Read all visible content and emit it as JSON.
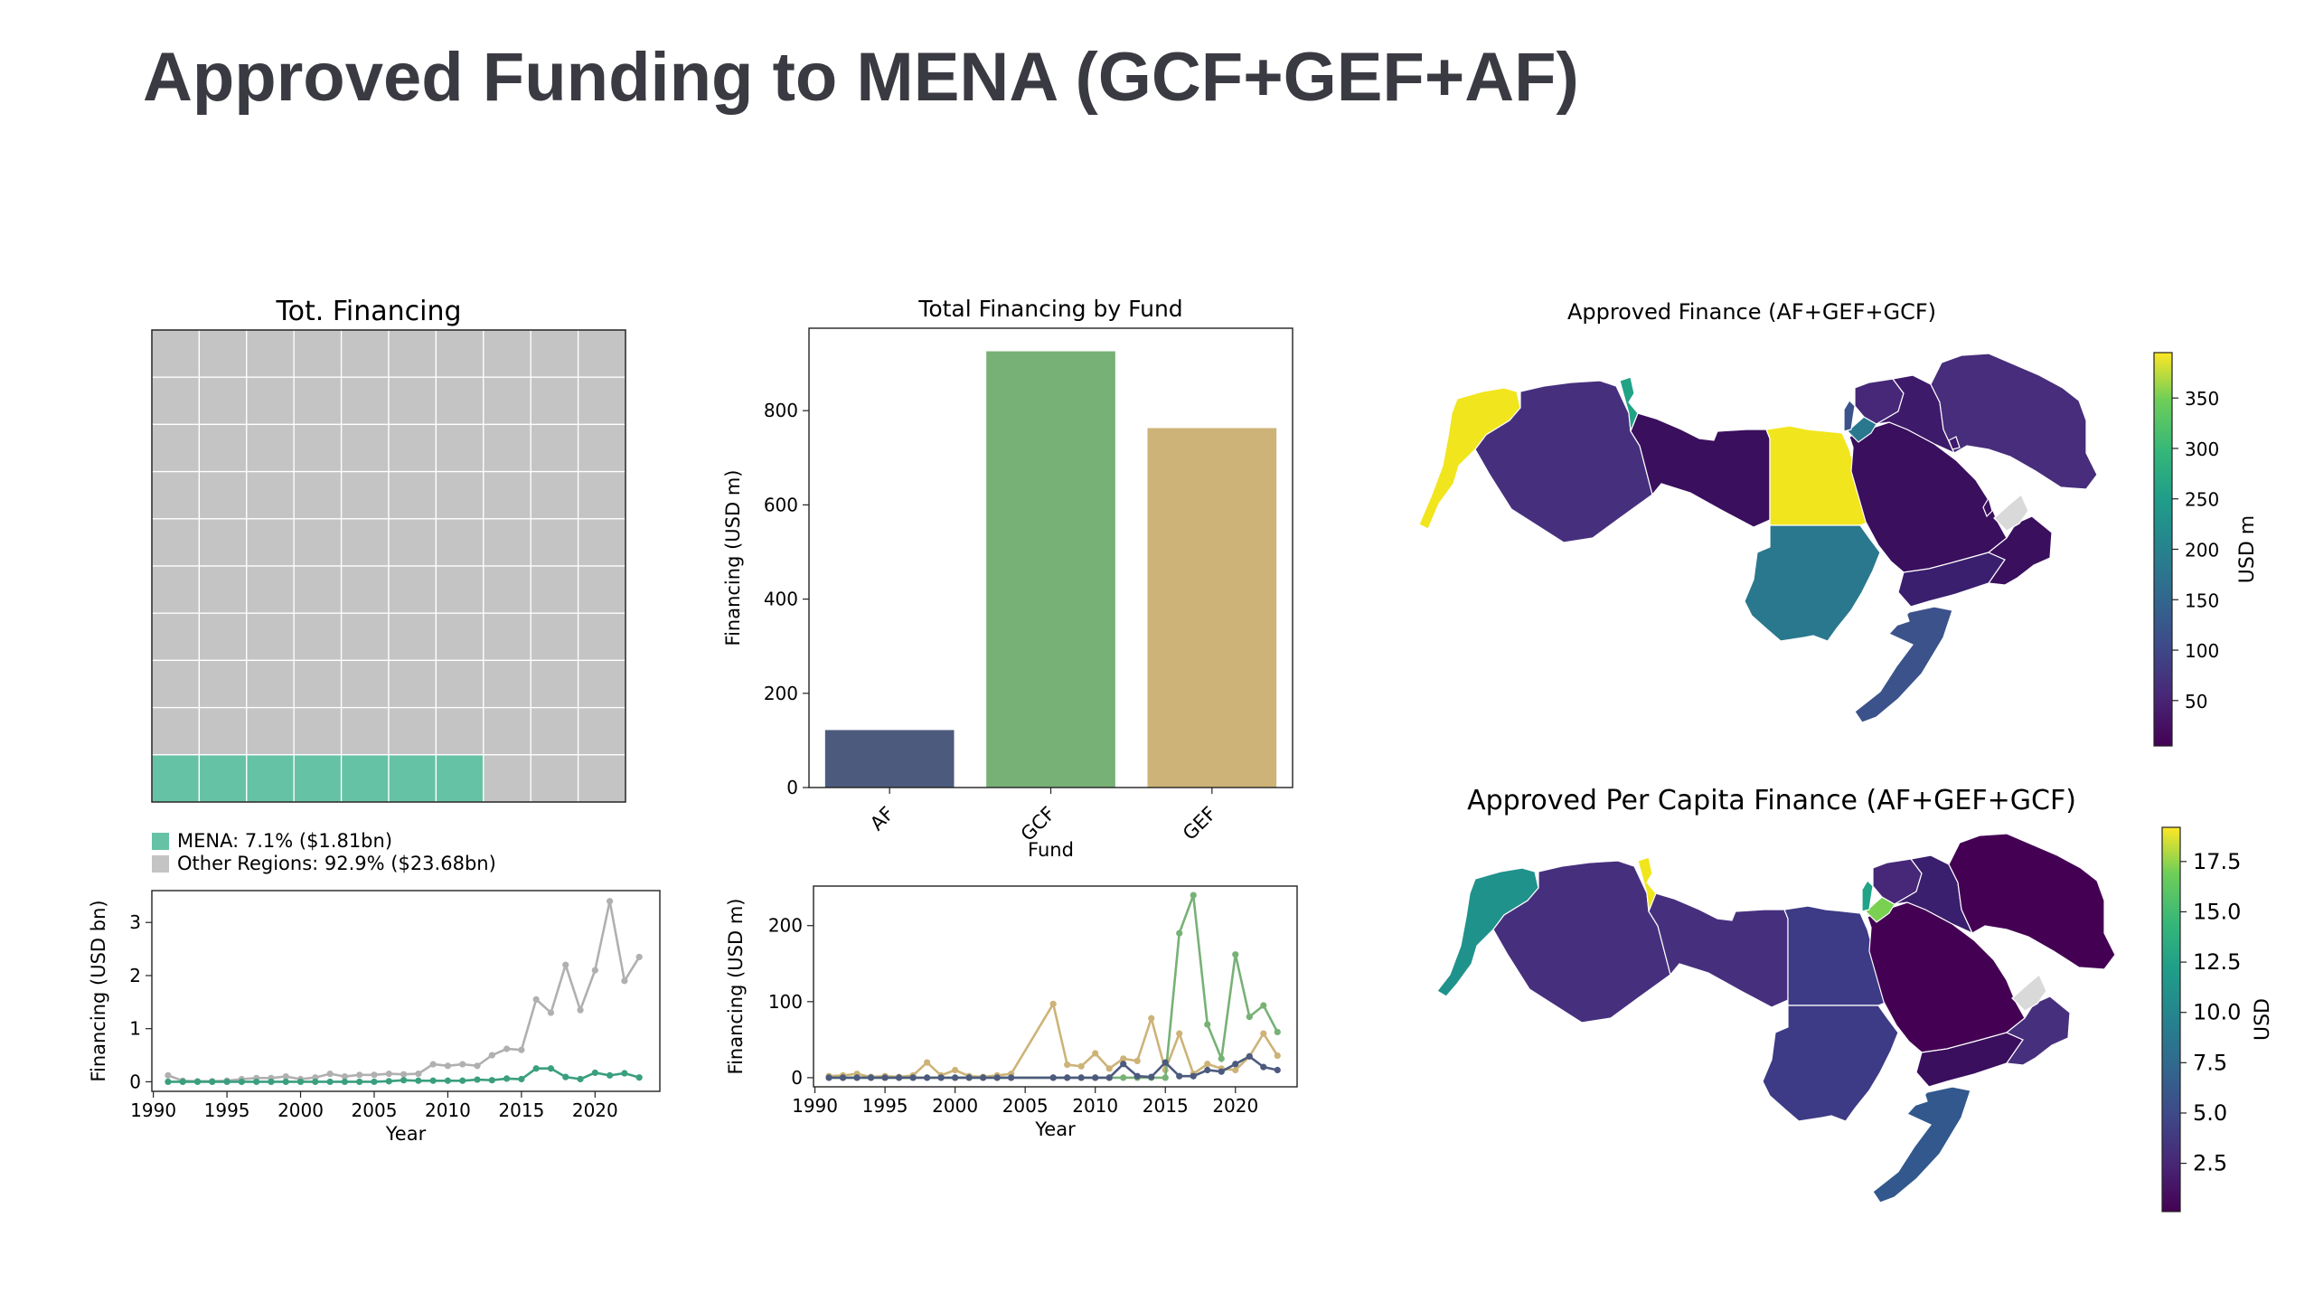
{
  "page": {
    "title": "Approved Funding to MENA (GCF+GEF+AF)"
  },
  "waffle": {
    "title": "Tot. Financing",
    "rows": 10,
    "cols": 10,
    "filled_cells": 7,
    "colors": {
      "mena": "#66c2a5",
      "other": "#c4c4c4"
    },
    "legend": [
      {
        "label": "MENA: 7.1% ($1.81bn)",
        "color": "#66c2a5"
      },
      {
        "label": "Other Regions: 92.9% ($23.68bn)",
        "color": "#c4c4c4"
      }
    ]
  },
  "chart_data": [
    {
      "id": "total_by_fund",
      "type": "bar",
      "title": "Total Financing by Fund",
      "xlabel": "Fund",
      "ylabel": "Financing (USD m)",
      "categories": [
        "AF",
        "GCF",
        "GEF"
      ],
      "values": [
        122,
        926,
        763
      ],
      "colors": [
        "#4c5a7e",
        "#77b176",
        "#cdb377"
      ],
      "ylim": [
        0,
        975
      ],
      "yticks": [
        0,
        200,
        400,
        600,
        800
      ],
      "grid": false
    },
    {
      "id": "region_timeseries",
      "type": "line",
      "xlabel": "Year",
      "ylabel": "Financing (USD bn)",
      "xlim": [
        1989.9,
        2024.4
      ],
      "ylim": [
        -0.18,
        3.6
      ],
      "xticks": [
        1990,
        1995,
        2000,
        2005,
        2010,
        2015,
        2020
      ],
      "yticks": [
        0,
        1,
        2,
        3
      ],
      "x": [
        1991,
        1992,
        1993,
        1994,
        1995,
        1996,
        1997,
        1998,
        1999,
        2000,
        2001,
        2002,
        2003,
        2004,
        2005,
        2006,
        2007,
        2008,
        2009,
        2010,
        2011,
        2012,
        2013,
        2014,
        2015,
        2016,
        2017,
        2018,
        2019,
        2020,
        2021,
        2022,
        2023
      ],
      "series": [
        {
          "color": "#b0b0b0",
          "values": [
            0.12,
            0.02,
            0.01,
            0.01,
            0.02,
            0.05,
            0.07,
            0.07,
            0.1,
            0.05,
            0.08,
            0.15,
            0.1,
            0.13,
            0.13,
            0.15,
            0.14,
            0.15,
            0.33,
            0.3,
            0.33,
            0.3,
            0.5,
            0.62,
            0.6,
            1.55,
            1.3,
            2.2,
            1.35,
            2.1,
            3.4,
            1.9,
            2.35
          ]
        },
        {
          "color": "#3a9f7f",
          "values": [
            0.0,
            0.0,
            0.0,
            0.0,
            0.0,
            0.0,
            0.0,
            0.0,
            0.0,
            0.0,
            0.0,
            0.0,
            0.0,
            0.0,
            0.0,
            0.01,
            0.03,
            0.02,
            0.02,
            0.02,
            0.02,
            0.04,
            0.03,
            0.06,
            0.05,
            0.25,
            0.25,
            0.09,
            0.05,
            0.17,
            0.12,
            0.16,
            0.08
          ]
        }
      ]
    },
    {
      "id": "fund_timeseries",
      "type": "line",
      "xlabel": "Year",
      "ylabel": "Financing (USD m)",
      "xlim": [
        1989.9,
        2024.4
      ],
      "ylim": [
        -12,
        252
      ],
      "xticks": [
        1990,
        1995,
        2000,
        2005,
        2010,
        2015,
        2020
      ],
      "yticks": [
        0,
        100,
        200
      ],
      "x": [
        1991,
        1992,
        1993,
        1994,
        1995,
        1996,
        1997,
        1998,
        1999,
        2000,
        2001,
        2002,
        2003,
        2004,
        2005,
        2006,
        2007,
        2008,
        2009,
        2010,
        2011,
        2012,
        2013,
        2014,
        2015,
        2016,
        2017,
        2018,
        2019,
        2020,
        2021,
        2022,
        2023
      ],
      "series": [
        {
          "color": "#cdb377",
          "values": [
            2,
            3,
            5,
            1,
            2,
            1,
            3,
            20,
            3,
            10,
            2,
            1,
            3,
            5,
            null,
            null,
            97,
            17,
            15,
            32,
            12,
            25,
            22,
            78,
            10,
            58,
            5,
            18,
            12,
            10,
            28,
            58,
            29
          ]
        },
        {
          "color": "#77b176",
          "values": [
            0,
            0,
            0,
            0,
            0,
            0,
            0,
            0,
            0,
            0,
            0,
            0,
            0,
            0,
            null,
            null,
            0,
            0,
            0,
            0,
            0,
            0,
            0,
            0,
            0,
            190,
            240,
            70,
            25,
            162,
            80,
            95,
            60
          ]
        },
        {
          "color": "#4c5a7e",
          "values": [
            0,
            0,
            0,
            0,
            0,
            0,
            0,
            0,
            0,
            0,
            0,
            0,
            0,
            0,
            null,
            null,
            0,
            0,
            0,
            0,
            0,
            18,
            2,
            1,
            20,
            2,
            2,
            10,
            8,
            18,
            28,
            14,
            10
          ]
        }
      ]
    },
    {
      "id": "map_total",
      "type": "heatmap",
      "title": "Approved Finance (AF+GEF+GCF)",
      "colorbar_label": "USD m",
      "colorbar_range": [
        5,
        395
      ],
      "colorbar_ticks": [
        50,
        100,
        150,
        200,
        250,
        300,
        350
      ]
    },
    {
      "id": "map_per_capita",
      "type": "heatmap",
      "title": "Approved Per Capita Finance (AF+GEF+GCF)",
      "colorbar_label": "USD",
      "colorbar_range": [
        0.1,
        19.2
      ],
      "colorbar_ticks": [
        2.5,
        5.0,
        7.5,
        10.0,
        12.5,
        15.0,
        17.5
      ]
    }
  ]
}
